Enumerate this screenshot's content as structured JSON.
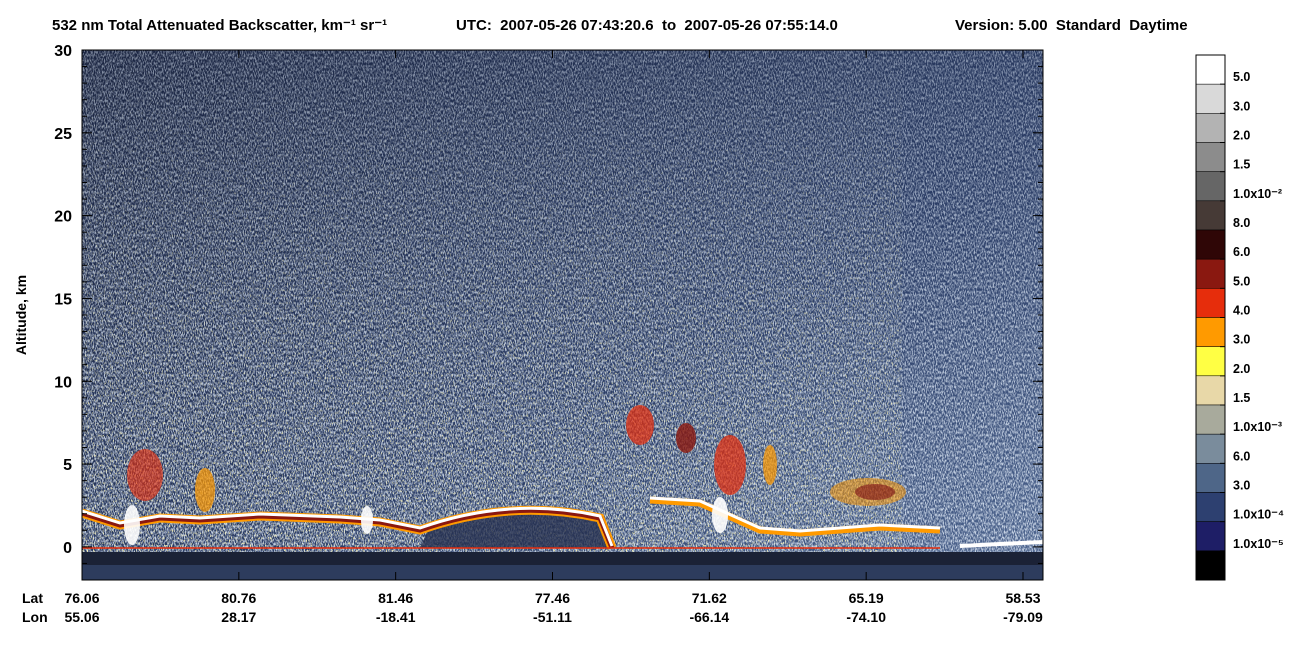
{
  "chart_data": {
    "type": "curtain",
    "title": "532 nm Total Attenuated Backscatter, km⁻¹ sr⁻¹",
    "time_range": "UTC:  2007-05-26 07:43:20.6  to  2007-05-26 07:55:14.0",
    "version": "Version: 5.00  Standard  Daytime",
    "y_label": "Altitude, km",
    "ylim": [
      -2,
      30
    ],
    "yticks": [
      0,
      5,
      10,
      15,
      20,
      25,
      30
    ],
    "x_row_labels": [
      "Lat",
      "Lon"
    ],
    "lat": [
      "76.06",
      "80.76",
      "81.46",
      "77.46",
      "71.62",
      "65.19",
      "58.53"
    ],
    "lon": [
      "55.06",
      "28.17",
      "-18.41",
      "-51.11",
      "-66.14",
      "-74.10",
      "-79.09"
    ],
    "colorbar": {
      "colors": [
        "#ffffff",
        "#d9d9d9",
        "#b3b3b3",
        "#8c8c8c",
        "#666666",
        "#463a36",
        "#2f0606",
        "#8a1810",
        "#e62d0c",
        "#ff9a00",
        "#ffff44",
        "#e8d8a8",
        "#a8aa9c",
        "#7a8c9c",
        "#4e6688",
        "#2d4070",
        "#1e1e66",
        "#000000"
      ],
      "labels": [
        "5.0",
        "3.0",
        "2.0",
        "1.5",
        "1.0x10⁻²",
        "8.0",
        "6.0",
        "5.0",
        "4.0",
        "3.0",
        "2.0",
        "1.5",
        "1.0x10⁻³",
        "6.0",
        "3.0",
        "1.0x10⁻⁴",
        "1.0x10⁻⁵"
      ]
    }
  }
}
